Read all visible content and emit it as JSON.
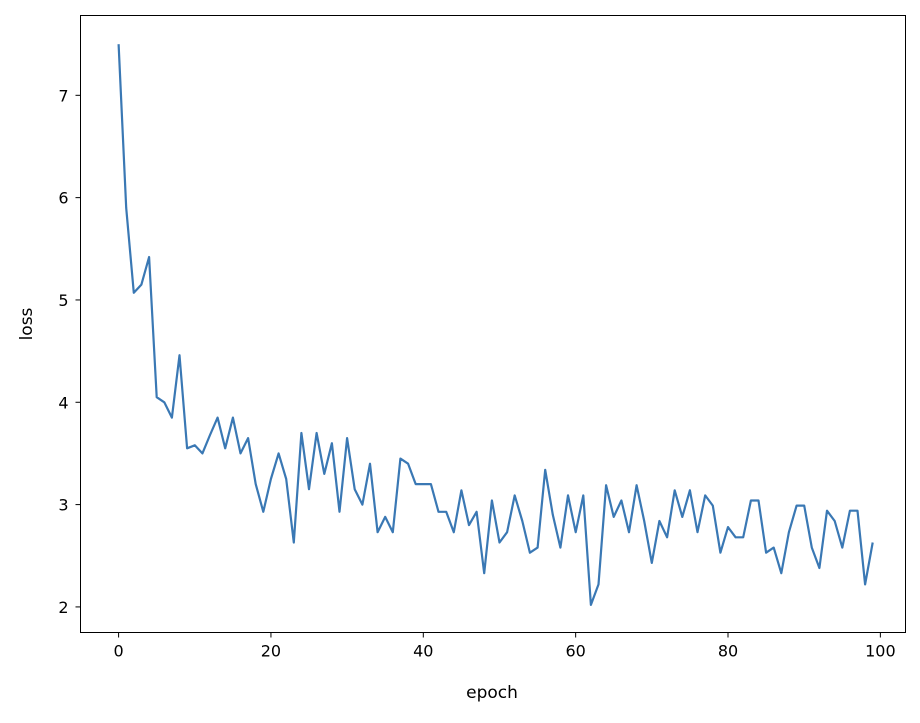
{
  "chart_data": {
    "type": "line",
    "title": "",
    "xlabel": "epoch",
    "ylabel": "loss",
    "xlim": [
      -5,
      103.3
    ],
    "ylim": [
      1.75,
      7.78
    ],
    "xticks": [
      0,
      20,
      40,
      60,
      80,
      100
    ],
    "yticks": [
      2,
      3,
      4,
      5,
      6,
      7
    ],
    "grid": false,
    "line_color": "#3a78b4",
    "series": [
      {
        "x_start": 0,
        "values": [
          7.5,
          5.9,
          5.07,
          5.15,
          5.42,
          4.05,
          4.0,
          3.85,
          4.46,
          3.55,
          3.58,
          3.5,
          3.68,
          3.85,
          3.55,
          3.85,
          3.5,
          3.65,
          3.2,
          2.93,
          3.25,
          3.5,
          3.25,
          2.63,
          3.7,
          3.15,
          3.7,
          3.3,
          3.6,
          2.93,
          3.65,
          3.15,
          3.0,
          3.4,
          2.73,
          2.88,
          2.73,
          3.45,
          3.4,
          3.2,
          3.2,
          3.2,
          2.93,
          2.93,
          2.73,
          3.14,
          2.8,
          2.93,
          2.33,
          3.04,
          2.63,
          2.73,
          3.09,
          2.84,
          2.53,
          2.58,
          3.34,
          2.9,
          2.58,
          3.09,
          2.73,
          3.09,
          2.02,
          2.22,
          3.19,
          2.88,
          3.04,
          2.73,
          3.19,
          2.84,
          2.43,
          2.84,
          2.68,
          3.14,
          2.88,
          3.14,
          2.73,
          3.09,
          2.99,
          2.53,
          2.78,
          2.68,
          2.68,
          3.04,
          3.04,
          2.53,
          2.58,
          2.33,
          2.73,
          2.99,
          2.99,
          2.58,
          2.38,
          2.94,
          2.84,
          2.58,
          2.94,
          2.94,
          2.22,
          2.63
        ]
      }
    ]
  }
}
